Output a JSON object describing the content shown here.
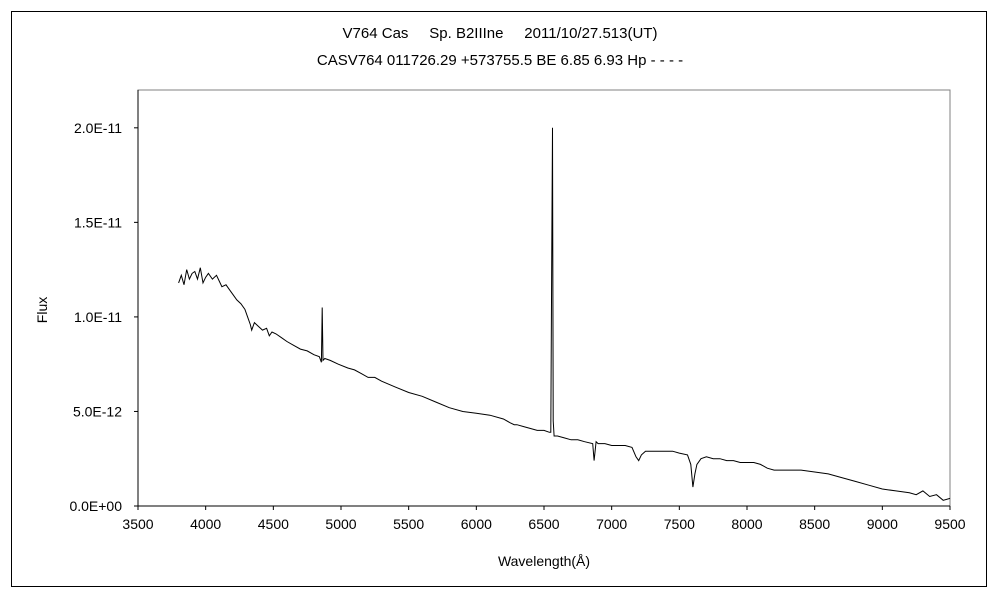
{
  "chart_data": {
    "type": "line",
    "title": "V764 Cas     Sp. B2IIIne     2011/10/27.513(UT)",
    "subtitle": "CASV764 011726.29 +573755.5 BE 6.85 6.93 Hp - - - -",
    "xlabel": "Wavelength(Å)",
    "ylabel": "Flux",
    "xlim": [
      3500,
      9500
    ],
    "ylim": [
      0,
      2.2e-11
    ],
    "grid": false,
    "x_ticks": [
      3500,
      4000,
      4500,
      5000,
      5500,
      6000,
      6500,
      7000,
      7500,
      8000,
      8500,
      9000,
      9500
    ],
    "x_tick_labels": [
      "3500",
      "4000",
      "4500",
      "5000",
      "5500",
      "6000",
      "6500",
      "7000",
      "7500",
      "8000",
      "8500",
      "9000",
      "9500"
    ],
    "y_ticks": [
      0,
      5e-12,
      1e-11,
      1.5e-11,
      2e-11
    ],
    "y_tick_labels": [
      "0.0E+00",
      "5.0E-12",
      "1.0E-11",
      "1.5E-11",
      "2.0E-11"
    ],
    "series": [
      {
        "values_note": "",
        "x": [
          3800,
          3820,
          3840,
          3860,
          3880,
          3900,
          3920,
          3940,
          3960,
          3980,
          4000,
          4020,
          4050,
          4080,
          4100,
          4120,
          4150,
          4180,
          4200,
          4230,
          4260,
          4290,
          4310,
          4330,
          4340,
          4360,
          4390,
          4420,
          4450,
          4470,
          4490,
          4520,
          4560,
          4600,
          4650,
          4700,
          4750,
          4800,
          4840,
          4855,
          4861,
          4867,
          4880,
          4920,
          4980,
          5050,
          5100,
          5150,
          5200,
          5250,
          5300,
          5400,
          5500,
          5600,
          5700,
          5800,
          5900,
          6000,
          6100,
          6200,
          6250,
          6280,
          6300,
          6350,
          6400,
          6450,
          6500,
          6540,
          6550,
          6558,
          6563,
          6568,
          6575,
          6600,
          6650,
          6700,
          6750,
          6800,
          6860,
          6870,
          6885,
          6900,
          6950,
          7000,
          7050,
          7100,
          7150,
          7180,
          7200,
          7220,
          7250,
          7300,
          7350,
          7400,
          7450,
          7500,
          7560,
          7585,
          7600,
          7615,
          7630,
          7660,
          7700,
          7750,
          7800,
          7850,
          7900,
          7950,
          8000,
          8050,
          8100,
          8150,
          8200,
          8300,
          8400,
          8500,
          8600,
          8700,
          8800,
          8900,
          9000,
          9100,
          9200,
          9250,
          9300,
          9350,
          9400,
          9450,
          9500
        ],
        "y": [
          1.18e-11,
          1.22e-11,
          1.17e-11,
          1.25e-11,
          1.2e-11,
          1.23e-11,
          1.24e-11,
          1.2e-11,
          1.26e-11,
          1.18e-11,
          1.21e-11,
          1.23e-11,
          1.2e-11,
          1.22e-11,
          1.19e-11,
          1.16e-11,
          1.17e-11,
          1.14e-11,
          1.12e-11,
          1.09e-11,
          1.07e-11,
          1.04e-11,
          1e-11,
          9.6e-12,
          9.3e-12,
          9.7e-12,
          9.5e-12,
          9.3e-12,
          9.4e-12,
          9e-12,
          9.2e-12,
          9.1e-12,
          8.9e-12,
          8.7e-12,
          8.5e-12,
          8.3e-12,
          8.2e-12,
          8e-12,
          7.9e-12,
          7.6e-12,
          1.05e-11,
          7.7e-12,
          7.8e-12,
          7.7e-12,
          7.5e-12,
          7.3e-12,
          7.2e-12,
          7e-12,
          6.8e-12,
          6.8e-12,
          6.6e-12,
          6.3e-12,
          6e-12,
          5.8e-12,
          5.5e-12,
          5.2e-12,
          5e-12,
          4.9e-12,
          4.8e-12,
          4.6e-12,
          4.4e-12,
          4.3e-12,
          4.3e-12,
          4.2e-12,
          4.1e-12,
          4e-12,
          4e-12,
          3.9e-12,
          3.9e-12,
          1.38e-11,
          2e-11,
          4.5e-12,
          3.7e-12,
          3.7e-12,
          3.6e-12,
          3.5e-12,
          3.5e-12,
          3.4e-12,
          3.3e-12,
          2.4e-12,
          3.4e-12,
          3.3e-12,
          3.3e-12,
          3.2e-12,
          3.2e-12,
          3.2e-12,
          3.1e-12,
          2.6e-12,
          2.4e-12,
          2.7e-12,
          2.9e-12,
          2.9e-12,
          2.9e-12,
          2.9e-12,
          2.9e-12,
          2.8e-12,
          2.7e-12,
          2.2e-12,
          1e-12,
          1.7e-12,
          2.2e-12,
          2.5e-12,
          2.6e-12,
          2.5e-12,
          2.5e-12,
          2.4e-12,
          2.4e-12,
          2.3e-12,
          2.3e-12,
          2.3e-12,
          2.2e-12,
          2e-12,
          1.9e-12,
          1.9e-12,
          1.9e-12,
          1.8e-12,
          1.7e-12,
          1.5e-12,
          1.3e-12,
          1.1e-12,
          9e-13,
          8e-13,
          7e-13,
          6e-13,
          8e-13,
          5e-13,
          6e-13,
          3e-13,
          4e-13
        ]
      }
    ]
  }
}
